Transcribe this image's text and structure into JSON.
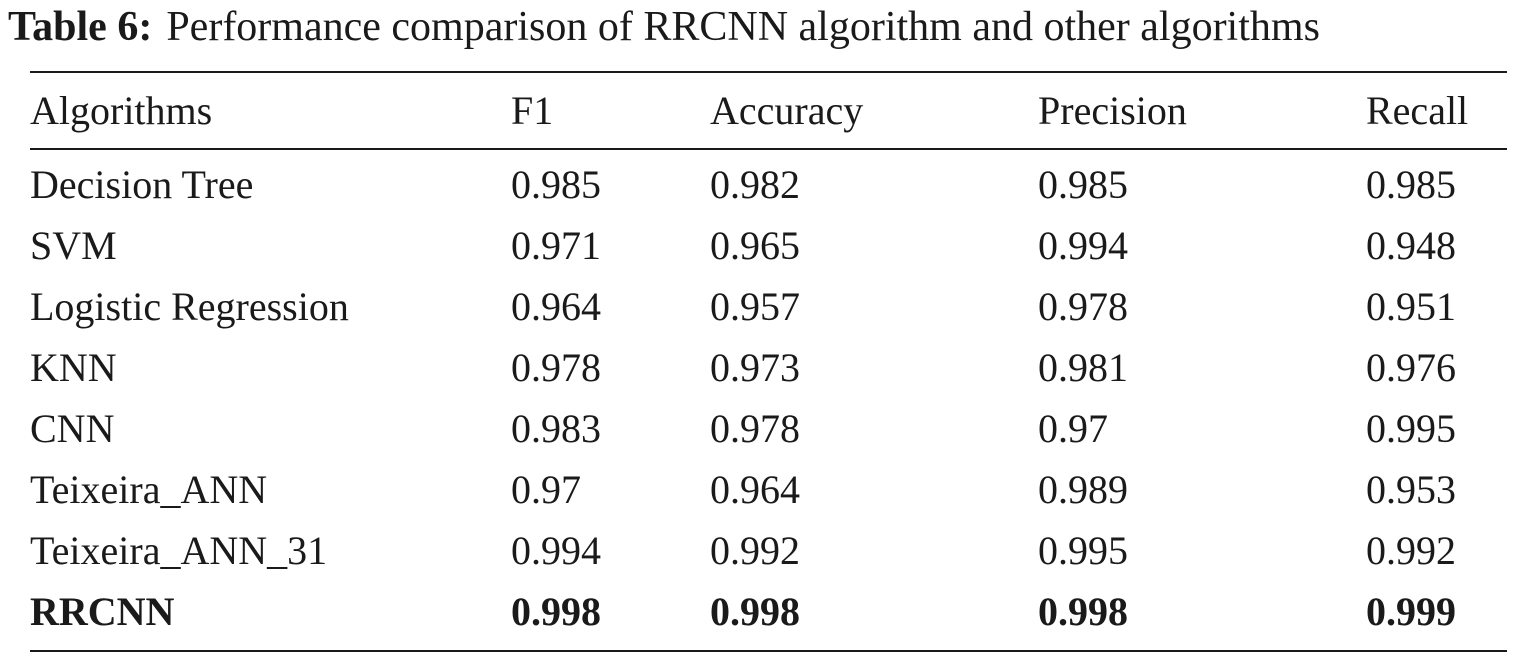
{
  "caption": {
    "label": "Table 6:",
    "text": "Performance comparison of RRCNN algorithm and other algorithms"
  },
  "table": {
    "headers": [
      "Algorithms",
      "F1",
      "Accuracy",
      "Precision",
      "Recall"
    ],
    "rows": [
      {
        "cells": [
          "Decision Tree",
          "0.985",
          "0.982",
          "0.985",
          "0.985"
        ],
        "bold": false
      },
      {
        "cells": [
          "SVM",
          "0.971",
          "0.965",
          "0.994",
          "0.948"
        ],
        "bold": false
      },
      {
        "cells": [
          "Logistic Regression",
          "0.964",
          "0.957",
          "0.978",
          "0.951"
        ],
        "bold": false
      },
      {
        "cells": [
          "KNN",
          "0.978",
          "0.973",
          "0.981",
          "0.976"
        ],
        "bold": false
      },
      {
        "cells": [
          "CNN",
          "0.983",
          "0.978",
          "0.97",
          "0.995"
        ],
        "bold": false
      },
      {
        "cells": [
          "Teixeira_ANN",
          "0.97",
          "0.964",
          "0.989",
          "0.953"
        ],
        "bold": false
      },
      {
        "cells": [
          "Teixeira_ANN_31",
          "0.994",
          "0.992",
          "0.995",
          "0.992"
        ],
        "bold": false
      },
      {
        "cells": [
          "RRCNN",
          "0.998",
          "0.998",
          "0.998",
          "0.999"
        ],
        "bold": true
      }
    ]
  }
}
